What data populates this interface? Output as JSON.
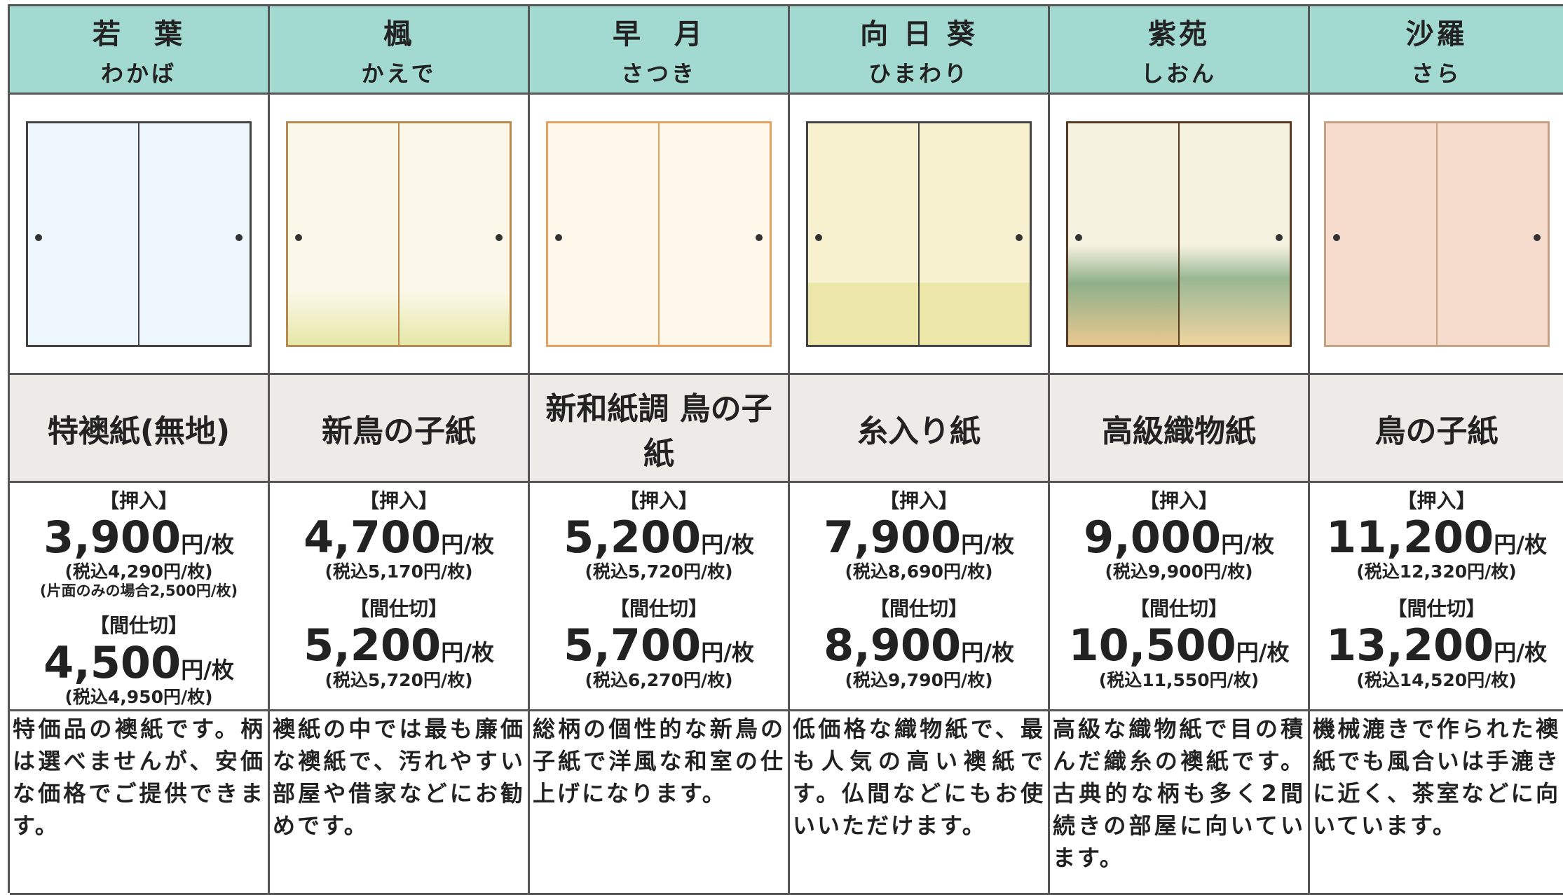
{
  "columns": [
    {
      "name": "若　葉",
      "reading": "わかば",
      "paper": "特襖紙(無地)",
      "oshiire": {
        "label": "【押入】",
        "price": "3,900",
        "unit": "円/枚",
        "tax": "(税込4,290円/枚)",
        "note": "(片面のみの場合2,500円/枚)"
      },
      "majikiri": {
        "label": "【間仕切】",
        "price": "4,500",
        "unit": "円/枚",
        "tax": "(税込4,950円/枚)"
      },
      "description": "特価品の襖紙です。柄は選べませんが、安価な価格でご提供できます。"
    },
    {
      "name": "楓",
      "reading": "かえで",
      "paper": "新鳥の子紙",
      "oshiire": {
        "label": "【押入】",
        "price": "4,700",
        "unit": "円/枚",
        "tax": "(税込5,170円/枚)"
      },
      "majikiri": {
        "label": "【間仕切】",
        "price": "5,200",
        "unit": "円/枚",
        "tax": "(税込5,720円/枚)"
      },
      "description": "襖紙の中では最も廉価な襖紙で、汚れやすい部屋や借家などにお勧めです。"
    },
    {
      "name": "早　月",
      "reading": "さつき",
      "paper": "新和紙調 鳥の子紙",
      "oshiire": {
        "label": "【押入】",
        "price": "5,200",
        "unit": "円/枚",
        "tax": "(税込5,720円/枚)"
      },
      "majikiri": {
        "label": "【間仕切】",
        "price": "5,700",
        "unit": "円/枚",
        "tax": "(税込6,270円/枚)"
      },
      "description": "総柄の個性的な新鳥の子紙で洋風な和室の仕上げになります。"
    },
    {
      "name": "向 日 葵",
      "reading": "ひまわり",
      "paper": "糸入り紙",
      "oshiire": {
        "label": "【押入】",
        "price": "7,900",
        "unit": "円/枚",
        "tax": "(税込8,690円/枚)"
      },
      "majikiri": {
        "label": "【間仕切】",
        "price": "8,900",
        "unit": "円/枚",
        "tax": "(税込9,790円/枚)"
      },
      "description": "低価格な織物紙で、最も人気の高い襖紙です。仏間などにもお使いいただけます。"
    },
    {
      "name": "紫苑",
      "reading": "しおん",
      "paper": "高級織物紙",
      "oshiire": {
        "label": "【押入】",
        "price": "9,000",
        "unit": "円/枚",
        "tax": "(税込9,900円/枚)"
      },
      "majikiri": {
        "label": "【間仕切】",
        "price": "10,500",
        "unit": "円/枚",
        "tax": "(税込11,550円/枚)"
      },
      "description": "高級な織物紙で目の積んだ織糸の襖紙です。古典的な柄も多く2間続きの部屋に向いています。"
    },
    {
      "name": "沙羅",
      "reading": "さら",
      "paper": "鳥の子紙",
      "oshiire": {
        "label": "【押入】",
        "price": "11,200",
        "unit": "円/枚",
        "tax": "(税込12,320円/枚)"
      },
      "majikiri": {
        "label": "【間仕切】",
        "price": "13,200",
        "unit": "円/枚",
        "tax": "(税込14,520円/枚)"
      },
      "description": "機械漉きで作られた襖紙でも風合いは手漉きに近く、茶室などに向いています。"
    }
  ]
}
